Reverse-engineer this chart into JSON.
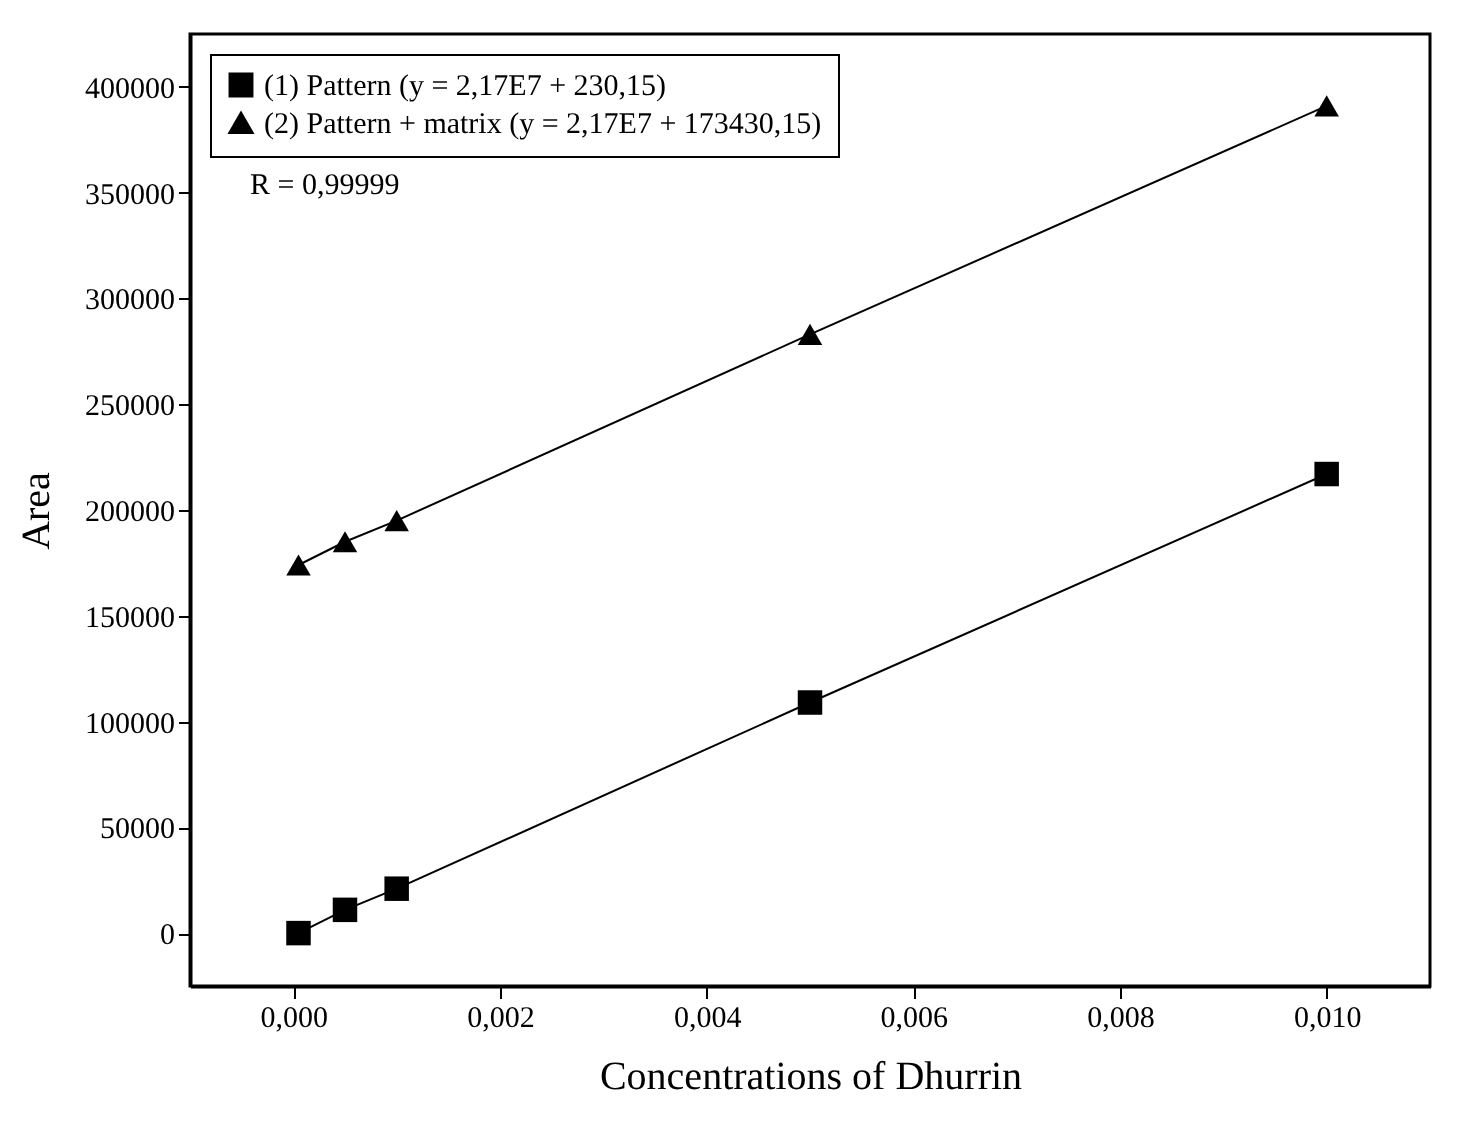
{
  "chart_data": {
    "type": "line",
    "xlabel": "Concentrations of Dhurrin",
    "ylabel": "Area",
    "x": [
      5e-05,
      0.0005,
      0.001,
      0.005,
      0.01
    ],
    "series": [
      {
        "name": "(1) Pattern (y = 2,17E7 + 230,15)",
        "color": "#000000",
        "marker": "square",
        "values": [
          0,
          11000,
          21000,
          109000,
          217000
        ]
      },
      {
        "name": "(2) Pattern + matrix (y = 2,17E7 + 173430,15)",
        "color": "#000000",
        "marker": "triangle",
        "values": [
          174000,
          185000,
          195000,
          283000,
          391000
        ]
      }
    ],
    "annotations": [
      "R = 0,99999"
    ],
    "xlim": [
      -0.001,
      0.011
    ],
    "xticks": [
      {
        "value": 0,
        "label": "0,000"
      },
      {
        "value": 0.002,
        "label": "0,002"
      },
      {
        "value": 0.004,
        "label": "0,004"
      },
      {
        "value": 0.006,
        "label": "0,006"
      },
      {
        "value": 0.008,
        "label": "0,008"
      },
      {
        "value": 0.01,
        "label": "0,010"
      }
    ],
    "ylim": [
      -25000,
      425000
    ],
    "yticks": [
      0,
      50000,
      100000,
      150000,
      200000,
      250000,
      300000,
      350000,
      400000
    ],
    "legend": "top left",
    "grid": false,
    "line_style": "solid"
  }
}
